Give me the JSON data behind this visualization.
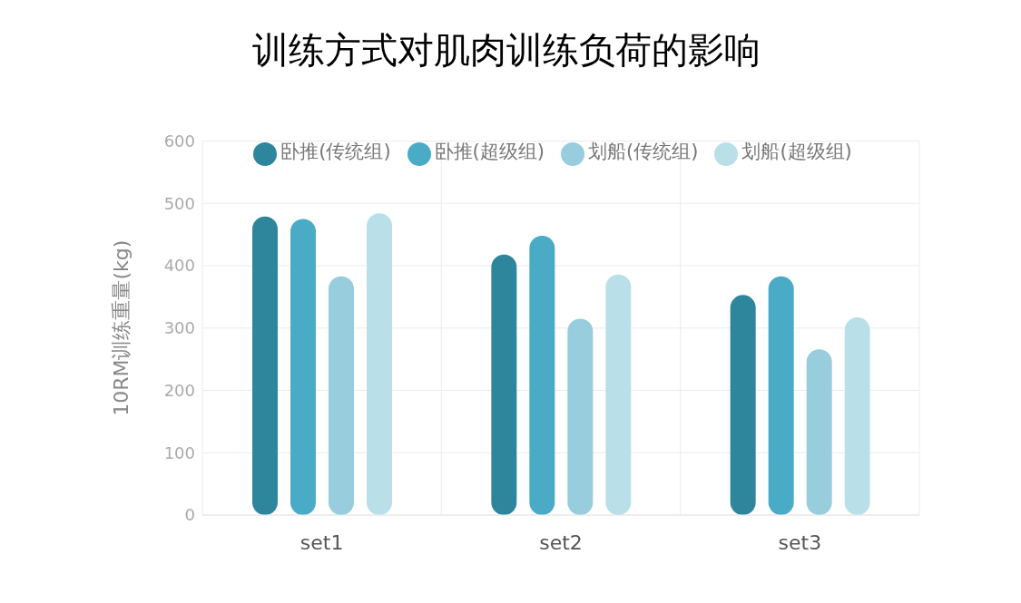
{
  "chart_data": {
    "type": "bar",
    "title": "训练方式对肌肉训练负荷的影响",
    "ylabel": "10RM训练重量(kg)",
    "categories": [
      "set1",
      "set2",
      "set3"
    ],
    "series": [
      {
        "name": "卧推(传统组)",
        "color": "#2e869c",
        "values": [
          479,
          418,
          353
        ]
      },
      {
        "name": "卧推(超级组)",
        "color": "#4aabc6",
        "values": [
          475,
          448,
          383
        ]
      },
      {
        "name": "划船(传统组)",
        "color": "#97cddc",
        "values": [
          383,
          315,
          266
        ]
      },
      {
        "name": "划船(超级组)",
        "color": "#b9e0e8",
        "values": [
          484,
          386,
          317
        ]
      }
    ],
    "ylim": [
      0,
      600
    ],
    "yticks": [
      0,
      100,
      200,
      300,
      400,
      500,
      600
    ],
    "grid": true,
    "legend": "top"
  }
}
